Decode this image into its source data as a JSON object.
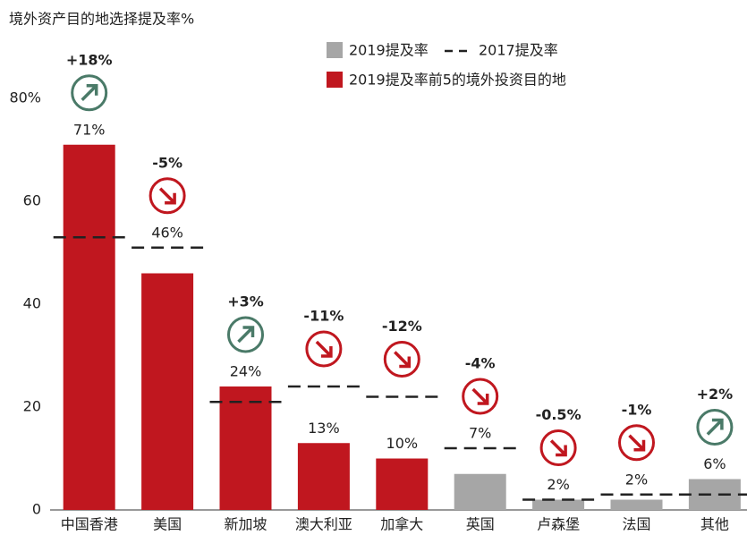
{
  "chart_data": {
    "type": "bar",
    "title": "境外资产目的地选择提及率%",
    "categories": [
      "中国香港",
      "美国",
      "新加坡",
      "澳大利亚",
      "加拿大",
      "英国",
      "卢森堡",
      "法国",
      "其他"
    ],
    "series": [
      {
        "name": "2019提及率",
        "color": "#a6a6a6",
        "values": [
          71,
          46,
          24,
          13,
          10,
          7,
          2,
          2,
          6
        ],
        "value_labels": [
          "71%",
          "46%",
          "24%",
          "13%",
          "10%",
          "7%",
          "2%",
          "2%",
          "6%"
        ],
        "bar_colors": [
          "#c0171f",
          "#c0171f",
          "#c0171f",
          "#c0171f",
          "#c0171f",
          "#a6a6a6",
          "#a6a6a6",
          "#a6a6a6",
          "#a6a6a6"
        ]
      },
      {
        "name": "2017提及率",
        "color": "#222222",
        "style": "dashed",
        "values": [
          53,
          51,
          21,
          24,
          22,
          12,
          2,
          3,
          3
        ]
      }
    ],
    "highlight": {
      "name": "2019提及率前5的境外投资目的地",
      "color": "#c0171f"
    },
    "changes": {
      "values": [
        18,
        -5,
        3,
        -11,
        -12,
        -4,
        -0.5,
        -1,
        2
      ],
      "value_labels": [
        "+18%",
        "-5%",
        "+3%",
        "-11%",
        "-12%",
        "-4%",
        "-0.5%",
        "-1%",
        "+2%"
      ],
      "up_color": "#4a7a68",
      "down_color": "#c0171f"
    },
    "ylim": [
      0,
      80
    ],
    "yticks": [
      0,
      20,
      40,
      60,
      {
        "value": 80,
        "label": "80%"
      }
    ]
  }
}
